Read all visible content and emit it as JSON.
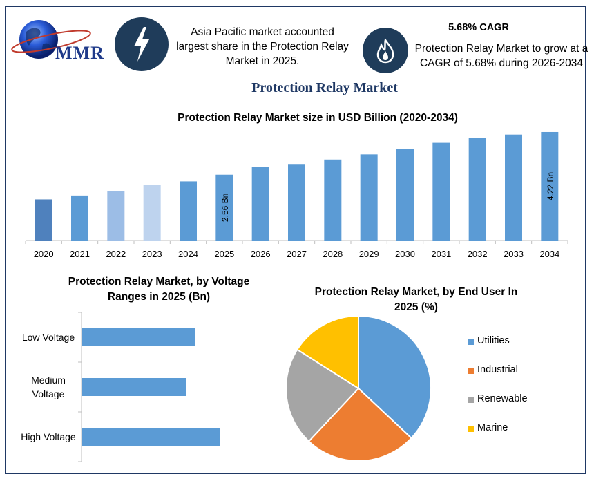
{
  "brand": {
    "logo_text": "MMR"
  },
  "icons": {
    "left": "lightning-bolt-icon",
    "right": "flame-icon",
    "logo": "globe-logo"
  },
  "info": {
    "region_highlight": "Asia Pacific market accounted largest share in the Protection Relay Market in 2025.",
    "cagr_title": "5.68% CAGR",
    "cagr_text": "Protection Relay Market to grow at a CAGR of 5.68% during 2026-2034"
  },
  "main_title": "Protection Relay Market",
  "colors": {
    "frame": "#1f3864",
    "title": "#1f3864",
    "bar": "#5b9bd5"
  },
  "chart_data": [
    {
      "type": "bar",
      "title": "Protection Relay Market size in USD Billion (2020-2034)",
      "categories": [
        "2020",
        "2021",
        "2022",
        "2023",
        "2024",
        "2025",
        "2026",
        "2027",
        "2028",
        "2029",
        "2030",
        "2031",
        "2032",
        "2033",
        "2034"
      ],
      "values": [
        1.6,
        1.75,
        1.93,
        2.15,
        2.3,
        2.56,
        2.85,
        2.95,
        3.15,
        3.35,
        3.55,
        3.8,
        4.0,
        4.12,
        4.22
      ],
      "colors": [
        "#4f81bd",
        "#5b9bd5",
        "#9cbde6",
        "#bed3ee",
        "#5b9bd5",
        "#5b9bd5",
        "#5b9bd5",
        "#5b9bd5",
        "#5b9bd5",
        "#5b9bd5",
        "#5b9bd5",
        "#5b9bd5",
        "#5b9bd5",
        "#5b9bd5",
        "#5b9bd5"
      ],
      "data_labels": [
        {
          "category": "2025",
          "text": "2.56 Bn"
        },
        {
          "category": "2034",
          "text": "4.22 Bn"
        }
      ],
      "ylim": [
        0,
        4.3
      ],
      "xlabel": "",
      "ylabel": "",
      "grid": false
    },
    {
      "type": "bar",
      "orientation": "horizontal",
      "title": "Protection Relay Market, by Voltage Ranges in 2025 (Bn)",
      "categories": [
        "Low Voltage",
        "Medium Voltage",
        "High Voltage"
      ],
      "values": [
        0.82,
        0.75,
        1.0
      ],
      "xlim": [
        0,
        1.6
      ],
      "grid": false
    },
    {
      "type": "pie",
      "title": "Protection Relay Market, by End User In 2025 (%)",
      "labels": [
        "Utilities",
        "Industrial",
        "Renewable",
        "Marine"
      ],
      "values": [
        37,
        25,
        22,
        16
      ],
      "colors": [
        "#5b9bd5",
        "#ed7d31",
        "#a5a5a5",
        "#ffc000"
      ],
      "legend": "right"
    }
  ]
}
